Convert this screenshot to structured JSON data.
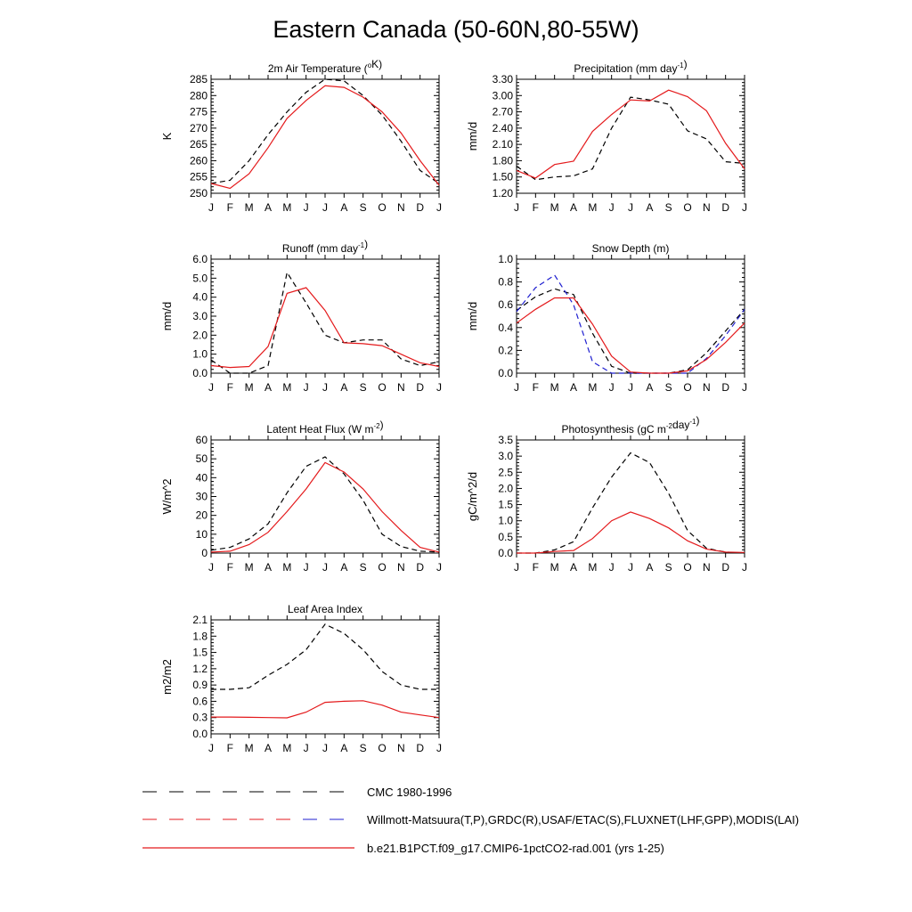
{
  "title": "Eastern Canada (50-60N,80-55W)",
  "months": [
    "J",
    "F",
    "M",
    "A",
    "M",
    "J",
    "J",
    "A",
    "S",
    "O",
    "N",
    "D",
    "J"
  ],
  "colors": {
    "observed": "#000000",
    "observed_alt": "#1f1fd0",
    "model": "#e41a1c"
  },
  "legend": [
    {
      "label": "CMC 1980-1996",
      "style": "dash-black"
    },
    {
      "label": "Willmott-Matsuura(T,P),GRDC(R),USAF/ETAC(S),FLUXNET(LHF,GPP),MODIS(LAI)",
      "style": "dash-red-blue"
    },
    {
      "label": "b.e21.B1PCT.f09_g17.CMIP6-1pctCO2-rad.001 (yrs 1-25)",
      "style": "solid-red"
    }
  ],
  "chart_data": [
    {
      "type": "line",
      "title": "2m Air Temperature (",
      "title_sup": "o",
      "title_after": "K)",
      "ylabel": "K",
      "ylim": [
        250,
        285
      ],
      "yticks": [
        "250",
        "255",
        "260",
        "265",
        "270",
        "275",
        "280",
        "285"
      ],
      "series": [
        {
          "role": "obs",
          "values": [
            253,
            254,
            260,
            268,
            275,
            281,
            285,
            284.5,
            280,
            274,
            266,
            257,
            253
          ]
        },
        {
          "role": "model",
          "values": [
            253,
            251.5,
            256,
            264,
            273,
            278.5,
            283,
            282.5,
            279.5,
            275,
            268.5,
            260,
            252.5
          ]
        }
      ]
    },
    {
      "type": "line",
      "title": "Precipitation (mm day",
      "title_sup": "-1",
      "title_after": ")",
      "ylabel": "mm/d",
      "ylim": [
        1.2,
        3.3
      ],
      "yticks": [
        "1.20",
        "1.50",
        "1.80",
        "2.10",
        "2.40",
        "2.70",
        "3.00",
        "3.30"
      ],
      "series": [
        {
          "role": "obs",
          "values": [
            1.7,
            1.45,
            1.5,
            1.52,
            1.65,
            2.4,
            2.97,
            2.92,
            2.84,
            2.35,
            2.2,
            1.78,
            1.75
          ]
        },
        {
          "role": "model",
          "values": [
            1.62,
            1.48,
            1.73,
            1.79,
            2.34,
            2.65,
            2.92,
            2.9,
            3.1,
            2.98,
            2.72,
            2.12,
            1.65
          ]
        }
      ]
    },
    {
      "type": "line",
      "title": "Runoff (mm day",
      "title_sup": "-1",
      "title_after": ")",
      "ylabel": "mm/d",
      "ylim": [
        0,
        6
      ],
      "yticks": [
        "0.0",
        "1.0",
        "2.0",
        "3.0",
        "4.0",
        "5.0",
        "6.0"
      ],
      "series": [
        {
          "role": "obs",
          "values": [
            0.7,
            0.0,
            0.0,
            0.4,
            5.3,
            3.7,
            2.0,
            1.6,
            1.75,
            1.75,
            0.75,
            0.4,
            0.6
          ]
        },
        {
          "role": "model",
          "values": [
            0.4,
            0.3,
            0.35,
            1.4,
            4.2,
            4.5,
            3.3,
            1.6,
            1.55,
            1.45,
            1.0,
            0.55,
            0.35
          ]
        }
      ]
    },
    {
      "type": "line",
      "title": "Snow Depth (m)",
      "title_sup": "",
      "title_after": "",
      "ylabel": "mm/d",
      "ylim": [
        0,
        1
      ],
      "yticks": [
        "0.0",
        "0.2",
        "0.4",
        "0.6",
        "0.8",
        "1.0"
      ],
      "series": [
        {
          "role": "obs",
          "values": [
            0.55,
            0.67,
            0.74,
            0.69,
            0.35,
            0.06,
            0.0,
            0.0,
            0.0,
            0.03,
            0.18,
            0.37,
            0.56
          ]
        },
        {
          "role": "obs_alt",
          "values": [
            0.54,
            0.75,
            0.86,
            0.6,
            0.1,
            0.0,
            0.0,
            0.0,
            0.0,
            0.0,
            0.13,
            0.33,
            0.56
          ]
        },
        {
          "role": "model",
          "values": [
            0.44,
            0.56,
            0.66,
            0.66,
            0.43,
            0.15,
            0.01,
            0.0,
            0.0,
            0.02,
            0.12,
            0.27,
            0.44
          ]
        }
      ]
    },
    {
      "type": "line",
      "title": "Latent Heat Flux (W m",
      "title_sup": "-2",
      "title_after": ")",
      "ylabel": "W/m^2",
      "ylim": [
        0,
        60
      ],
      "yticks": [
        "0",
        "10",
        "20",
        "30",
        "40",
        "50",
        "60"
      ],
      "series": [
        {
          "role": "obs",
          "values": [
            1.5,
            3,
            7.5,
            15.5,
            32,
            46,
            51,
            42,
            28,
            10,
            3.5,
            1,
            0.5
          ]
        },
        {
          "role": "model",
          "values": [
            0.5,
            1,
            4.5,
            11,
            22,
            34,
            48,
            43,
            34,
            22,
            12,
            3,
            0.5
          ]
        }
      ]
    },
    {
      "type": "line",
      "title": "Photosynthesis (gC m",
      "title_sup": "-2",
      "title_after": "day",
      "title_sup2": "-1",
      "title_after2": ")",
      "ylabel": "gC/m^2/d",
      "ylim": [
        0,
        3.5
      ],
      "yticks": [
        "0.0",
        "0.5",
        "1.0",
        "1.5",
        "2.0",
        "2.5",
        "3.0",
        "3.5"
      ],
      "series": [
        {
          "role": "obs",
          "values": [
            0.0,
            0.0,
            0.1,
            0.35,
            1.4,
            2.35,
            3.1,
            2.8,
            1.85,
            0.7,
            0.15,
            0.03,
            0.0
          ]
        },
        {
          "role": "model",
          "values": [
            0.0,
            0.0,
            0.05,
            0.08,
            0.45,
            1.0,
            1.27,
            1.07,
            0.78,
            0.38,
            0.12,
            0.03,
            0.02
          ]
        }
      ]
    },
    {
      "type": "line",
      "title": "Leaf Area Index",
      "title_sup": "",
      "title_after": "",
      "ylabel": "m2/m2",
      "ylim": [
        0,
        2.1
      ],
      "yticks": [
        "0.0",
        "0.3",
        "0.6",
        "0.9",
        "1.2",
        "1.5",
        "1.8",
        "2.1"
      ],
      "series": [
        {
          "role": "obs",
          "values": [
            0.82,
            0.82,
            0.85,
            1.08,
            1.28,
            1.55,
            2.02,
            1.85,
            1.55,
            1.15,
            0.9,
            0.82,
            0.82
          ]
        },
        {
          "role": "model",
          "values": [
            0.31,
            0.31,
            0.305,
            0.3,
            0.295,
            0.4,
            0.58,
            0.6,
            0.61,
            0.53,
            0.4,
            0.35,
            0.3
          ]
        }
      ]
    }
  ]
}
